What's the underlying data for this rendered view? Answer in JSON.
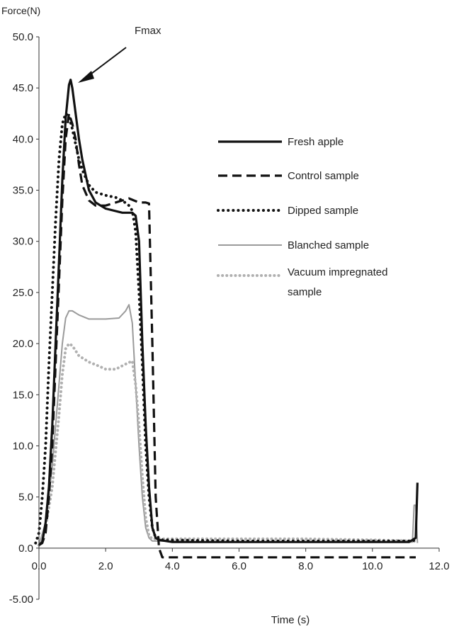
{
  "chart_data": {
    "type": "line",
    "ylabel": "Force(N)",
    "xlabel": "Time (s)",
    "xlim": [
      0,
      12
    ],
    "ylim": [
      -5,
      50
    ],
    "x_ticks": [
      "0.0",
      "2.0",
      "4.0",
      "6.0",
      "8.0",
      "10.0",
      "12.0"
    ],
    "y_ticks": [
      "-5.00",
      "0.0",
      "5.0",
      "10.0",
      "15.0",
      "20.0",
      "25.0",
      "30.0",
      "35.0",
      "40.0",
      "45.0",
      "50.0"
    ],
    "annotation": "Fmax",
    "legend_position": "right",
    "series": [
      {
        "name": "Fresh apple",
        "style": "solid-thick",
        "color": "#111111",
        "points": [
          [
            0.0,
            0.3
          ],
          [
            0.1,
            0.6
          ],
          [
            0.2,
            2.5
          ],
          [
            0.3,
            6
          ],
          [
            0.4,
            12
          ],
          [
            0.5,
            20
          ],
          [
            0.6,
            28
          ],
          [
            0.7,
            36
          ],
          [
            0.8,
            42
          ],
          [
            0.9,
            45.3
          ],
          [
            0.95,
            45.8
          ],
          [
            1.0,
            45
          ],
          [
            1.1,
            42.5
          ],
          [
            1.2,
            40
          ],
          [
            1.3,
            38
          ],
          [
            1.4,
            36.5
          ],
          [
            1.5,
            35
          ],
          [
            1.7,
            33.8
          ],
          [
            2.0,
            33.2
          ],
          [
            2.5,
            32.8
          ],
          [
            2.8,
            32.8
          ],
          [
            2.9,
            32.5
          ],
          [
            3.0,
            30
          ],
          [
            3.1,
            20
          ],
          [
            3.2,
            12
          ],
          [
            3.3,
            6
          ],
          [
            3.4,
            2
          ],
          [
            3.5,
            1
          ],
          [
            3.6,
            0.8
          ],
          [
            4.0,
            0.6
          ],
          [
            6.0,
            0.6
          ],
          [
            8.0,
            0.6
          ],
          [
            10.0,
            0.6
          ],
          [
            11.1,
            0.6
          ],
          [
            11.3,
            1
          ],
          [
            11.35,
            6.4
          ]
        ]
      },
      {
        "name": "Control sample",
        "style": "dashed-thick",
        "color": "#111111",
        "points": [
          [
            0.0,
            0.3
          ],
          [
            0.1,
            0.5
          ],
          [
            0.2,
            1.5
          ],
          [
            0.3,
            5
          ],
          [
            0.4,
            10
          ],
          [
            0.5,
            18
          ],
          [
            0.6,
            26
          ],
          [
            0.7,
            34
          ],
          [
            0.8,
            40
          ],
          [
            0.9,
            42.5
          ],
          [
            1.0,
            41.5
          ],
          [
            1.1,
            40
          ],
          [
            1.2,
            37.5
          ],
          [
            1.3,
            35.5
          ],
          [
            1.5,
            34
          ],
          [
            1.7,
            33.5
          ],
          [
            2.0,
            33.5
          ],
          [
            2.5,
            34
          ],
          [
            2.7,
            34.2
          ],
          [
            3.0,
            33.8
          ],
          [
            3.2,
            33.8
          ],
          [
            3.3,
            33.7
          ],
          [
            3.4,
            20
          ],
          [
            3.5,
            5
          ],
          [
            3.6,
            0
          ],
          [
            3.7,
            -0.9
          ],
          [
            6.0,
            -0.9
          ],
          [
            8.0,
            -0.9
          ],
          [
            10.0,
            -0.9
          ],
          [
            11.3,
            -0.9
          ]
        ]
      },
      {
        "name": "Dipped sample",
        "style": "dotted-thick",
        "color": "#111111",
        "points": [
          [
            -0.1,
            0.5
          ],
          [
            0.0,
            1.5
          ],
          [
            0.1,
            5
          ],
          [
            0.2,
            10
          ],
          [
            0.3,
            18
          ],
          [
            0.4,
            25
          ],
          [
            0.5,
            32
          ],
          [
            0.6,
            38
          ],
          [
            0.7,
            41.5
          ],
          [
            0.8,
            42.5
          ],
          [
            0.9,
            42.2
          ],
          [
            1.0,
            41
          ],
          [
            1.1,
            39.5
          ],
          [
            1.2,
            38
          ],
          [
            1.3,
            37
          ],
          [
            1.5,
            35.5
          ],
          [
            1.7,
            34.8
          ],
          [
            2.0,
            34.5
          ],
          [
            2.3,
            34.3
          ],
          [
            2.5,
            34
          ],
          [
            2.7,
            33.5
          ],
          [
            2.8,
            33
          ],
          [
            2.9,
            31
          ],
          [
            3.0,
            25
          ],
          [
            3.1,
            18
          ],
          [
            3.2,
            10
          ],
          [
            3.3,
            5
          ],
          [
            3.4,
            2
          ],
          [
            3.5,
            1
          ],
          [
            3.7,
            0.8
          ],
          [
            6.0,
            0.7
          ],
          [
            8.0,
            0.7
          ],
          [
            10.0,
            0.7
          ],
          [
            11.2,
            0.7
          ],
          [
            11.35,
            0.9
          ]
        ]
      },
      {
        "name": "Blanched sample",
        "style": "solid-thin",
        "color": "#9a9a9a",
        "points": [
          [
            0.0,
            0.3
          ],
          [
            0.2,
            2.5
          ],
          [
            0.4,
            8
          ],
          [
            0.6,
            16
          ],
          [
            0.7,
            20
          ],
          [
            0.8,
            22.5
          ],
          [
            0.9,
            23.2
          ],
          [
            1.0,
            23.2
          ],
          [
            1.2,
            22.8
          ],
          [
            1.5,
            22.4
          ],
          [
            2.0,
            22.4
          ],
          [
            2.4,
            22.5
          ],
          [
            2.6,
            23.2
          ],
          [
            2.7,
            23.8
          ],
          [
            2.8,
            22
          ],
          [
            2.9,
            16
          ],
          [
            3.0,
            10
          ],
          [
            3.1,
            5
          ],
          [
            3.2,
            2
          ],
          [
            3.3,
            1
          ],
          [
            3.4,
            0.7
          ],
          [
            6.0,
            0.6
          ],
          [
            8.0,
            0.6
          ],
          [
            10.0,
            0.6
          ],
          [
            11.2,
            0.6
          ],
          [
            11.25,
            4.2
          ],
          [
            11.3,
            4.2
          ],
          [
            11.35,
            0.5
          ]
        ]
      },
      {
        "name": "Vacuum impregnated sample",
        "style": "dotted-thin",
        "color": "#b0b0b0",
        "points": [
          [
            0.0,
            0.3
          ],
          [
            0.2,
            2
          ],
          [
            0.4,
            6
          ],
          [
            0.6,
            13
          ],
          [
            0.7,
            17
          ],
          [
            0.8,
            19.5
          ],
          [
            0.9,
            20
          ],
          [
            1.0,
            19.8
          ],
          [
            1.2,
            18.8
          ],
          [
            1.5,
            18.2
          ],
          [
            1.8,
            17.8
          ],
          [
            2.0,
            17.5
          ],
          [
            2.3,
            17.5
          ],
          [
            2.6,
            18
          ],
          [
            2.8,
            18.3
          ],
          [
            2.9,
            16
          ],
          [
            3.0,
            12
          ],
          [
            3.1,
            7
          ],
          [
            3.2,
            3
          ],
          [
            3.3,
            1.2
          ],
          [
            3.4,
            0.9
          ],
          [
            4.0,
            0.9
          ],
          [
            6.0,
            0.9
          ],
          [
            8.0,
            0.9
          ],
          [
            10.0,
            0.8
          ],
          [
            11.2,
            0.7
          ],
          [
            11.35,
            0.6
          ]
        ]
      }
    ]
  }
}
